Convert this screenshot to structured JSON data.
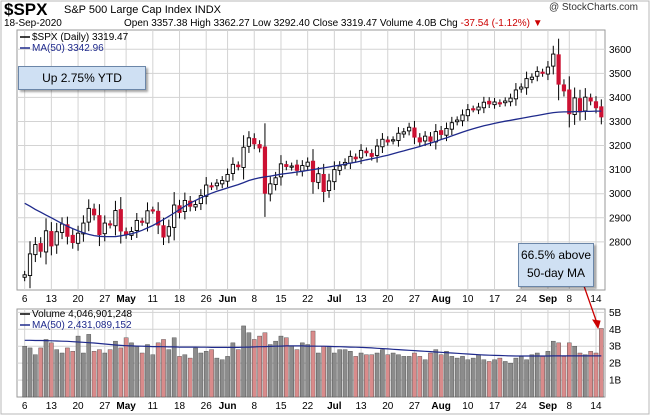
{
  "header": {
    "symbol": "$SPX",
    "name": "S&P 500 Large Cap Index",
    "exchange": "INDX",
    "date": "18-Sep-2020",
    "open_label": "Open",
    "open": "3357.38",
    "high_label": "High",
    "high": "3362.27",
    "low_label": "Low",
    "low": "3292.40",
    "close_label": "Close",
    "close": "3319.47",
    "volume_label": "Volume",
    "volume": "4.0B",
    "chg_label": "Chg",
    "chg": "-37.54 (-1.12%)",
    "chg_arrow": "▼",
    "brand": "@ StockCharts.com"
  },
  "annotations": {
    "ytd": "Up 2.75% YTD",
    "ma_line1": "66.5% above",
    "ma_line2": "50-day MA"
  },
  "chart_data": [
    {
      "type": "candlestick",
      "legend": [
        {
          "label": "$SPX (Daily) 3319.47",
          "color": "#000000"
        },
        {
          "label": "MA(50) 3342.96",
          "color": "#1f2a8c"
        }
      ],
      "ylim": [
        2600,
        3680
      ],
      "yticks": [
        2800,
        2900,
        3000,
        3100,
        3200,
        3300,
        3400,
        3500,
        3600
      ],
      "x_labels": [
        "6",
        "13",
        "20",
        "27",
        "May",
        "11",
        "18",
        "26",
        "Jun",
        "8",
        "15",
        "22",
        "Jul",
        "13",
        "20",
        "27",
        "Aug",
        "10",
        "17",
        "24",
        "Sep",
        "8",
        "14"
      ],
      "x_label_idx": [
        0,
        5,
        10,
        15,
        19,
        24,
        29,
        34,
        38,
        43,
        48,
        53,
        58,
        63,
        68,
        73,
        78,
        83,
        88,
        93,
        98,
        102,
        107
      ],
      "close": [
        2663,
        2750,
        2789,
        2761,
        2846,
        2783,
        2842,
        2874,
        2823,
        2797,
        2836,
        2878,
        2939,
        2912,
        2830,
        2878,
        2870,
        2930,
        2845,
        2830,
        2843,
        2889,
        2881,
        2929,
        2930,
        2870,
        2820,
        2863,
        2953,
        2922,
        2972,
        2948,
        2955,
        2992,
        3036,
        3029,
        3044,
        3055,
        3080,
        3122,
        3112,
        3193,
        3232,
        3207,
        3190,
        3002,
        3041,
        3066,
        3124,
        3113,
        3115,
        3097,
        3117,
        3131,
        3050,
        3083,
        3009,
        3053,
        3100,
        3115,
        3130,
        3155,
        3145,
        3180,
        3170,
        3155,
        3198,
        3226,
        3215,
        3224,
        3251,
        3257,
        3276,
        3235,
        3215,
        3239,
        3218,
        3258,
        3246,
        3271,
        3295,
        3306,
        3327,
        3349,
        3351,
        3360,
        3380,
        3373,
        3381,
        3374,
        3385,
        3397,
        3431,
        3443,
        3478,
        3484,
        3508,
        3500,
        3526,
        3580,
        3455,
        3427,
        3332,
        3398,
        3340,
        3401,
        3385,
        3357,
        3319
      ],
      "ma50": [
        2960,
        2948,
        2935,
        2923,
        2911,
        2900,
        2888,
        2876,
        2865,
        2855,
        2846,
        2838,
        2831,
        2826,
        2823,
        2822,
        2822,
        2822,
        2825,
        2829,
        2834,
        2840,
        2848,
        2858,
        2868,
        2880,
        2893,
        2906,
        2920,
        2934,
        2948,
        2961,
        2972,
        2983,
        2993,
        3002,
        3010,
        3017,
        3024,
        3031,
        3038,
        3046,
        3055,
        3061,
        3066,
        3070,
        3073,
        3077,
        3081,
        3084,
        3087,
        3090,
        3093,
        3097,
        3100,
        3104,
        3107,
        3111,
        3115,
        3119,
        3123,
        3127,
        3131,
        3136,
        3141,
        3145,
        3150,
        3155,
        3160,
        3166,
        3172,
        3178,
        3184,
        3190,
        3196,
        3203,
        3210,
        3217,
        3225,
        3232,
        3240,
        3248,
        3256,
        3263,
        3270,
        3276,
        3282,
        3287,
        3292,
        3297,
        3301,
        3305,
        3309,
        3313,
        3317,
        3321,
        3325,
        3329,
        3333,
        3337,
        3339,
        3340,
        3340,
        3341,
        3341,
        3342,
        3342,
        3343,
        3343
      ]
    },
    {
      "type": "bar",
      "legend": [
        {
          "label": "Volume 4,046,901,248",
          "color": "#000000"
        },
        {
          "label": "MA(50) 2,431,089,152",
          "color": "#1f2a8c"
        }
      ],
      "ylim": [
        0,
        5.2
      ],
      "yticks_values": [
        1,
        2,
        3,
        4,
        5
      ],
      "yticks": [
        "1B",
        "2B",
        "3B",
        "4B",
        "5B"
      ],
      "volume_b": [
        3.0,
        2.9,
        2.5,
        2.9,
        3.4,
        3.2,
        2.8,
        2.6,
        2.9,
        2.7,
        3.6,
        2.6,
        3.7,
        2.7,
        2.8,
        2.6,
        2.8,
        3.3,
        2.9,
        3.5,
        3.2,
        3.0,
        2.6,
        3.1,
        2.5,
        3.2,
        3.4,
        2.8,
        3.5,
        2.4,
        2.5,
        2.3,
        2.9,
        2.6,
        2.7,
        2.8,
        2.3,
        2.2,
        2.4,
        3.2,
        2.8,
        4.2,
        3.8,
        3.4,
        3.6,
        3.8,
        3.1,
        3.3,
        3.6,
        3.5,
        3.0,
        2.8,
        3.2,
        3.1,
        3.9,
        2.6,
        3.0,
        3.0,
        2.6,
        2.8,
        2.8,
        2.7,
        2.4,
        2.6,
        2.5,
        2.5,
        2.6,
        2.8,
        2.5,
        2.6,
        2.5,
        2.4,
        2.4,
        2.6,
        2.4,
        2.2,
        2.6,
        2.8,
        2.5,
        2.7,
        2.4,
        2.3,
        2.4,
        2.2,
        2.3,
        2.5,
        2.2,
        2.1,
        2.2,
        2.3,
        2.1,
        2.0,
        2.3,
        2.4,
        2.2,
        2.5,
        2.6,
        2.4,
        2.7,
        3.3,
        3.2,
        2.4,
        3.2,
        3.0,
        2.6,
        2.5,
        2.7,
        2.6,
        4.05
      ],
      "vol_ma50": [
        3.35,
        3.35,
        3.34,
        3.34,
        3.33,
        3.32,
        3.31,
        3.3,
        3.29,
        3.27,
        3.25,
        3.23,
        3.21,
        3.19,
        3.16,
        3.13,
        3.1,
        3.07,
        3.05,
        3.03,
        3.02,
        3.01,
        3.0,
        2.99,
        2.98,
        2.98,
        2.97,
        2.96,
        2.96,
        2.95,
        2.95,
        2.95,
        2.95,
        2.94,
        2.94,
        2.93,
        2.93,
        2.93,
        2.93,
        2.93,
        2.93,
        2.94,
        2.95,
        2.96,
        2.97,
        2.98,
        2.99,
        3.0,
        3.01,
        3.02,
        3.02,
        3.02,
        3.02,
        3.01,
        3.01,
        3.0,
        3.0,
        2.99,
        2.98,
        2.97,
        2.96,
        2.95,
        2.94,
        2.93,
        2.92,
        2.9,
        2.88,
        2.86,
        2.84,
        2.82,
        2.8,
        2.78,
        2.76,
        2.74,
        2.72,
        2.7,
        2.68,
        2.66,
        2.64,
        2.62,
        2.6,
        2.58,
        2.56,
        2.54,
        2.52,
        2.5,
        2.48,
        2.47,
        2.46,
        2.45,
        2.44,
        2.43,
        2.42,
        2.42,
        2.42,
        2.42,
        2.42,
        2.42,
        2.42,
        2.43,
        2.43,
        2.43,
        2.43,
        2.43,
        2.43,
        2.43,
        2.43,
        2.43,
        2.43
      ]
    }
  ],
  "colors": {
    "up": "#ffffff",
    "down": "#cc1133",
    "candle_outline": "#000000",
    "ma_line": "#1f2a8c",
    "vol_up": "#8c8c8c",
    "vol_down": "#d98b8b",
    "grid": "#d3d3d3",
    "arrow": "#cc0000"
  }
}
